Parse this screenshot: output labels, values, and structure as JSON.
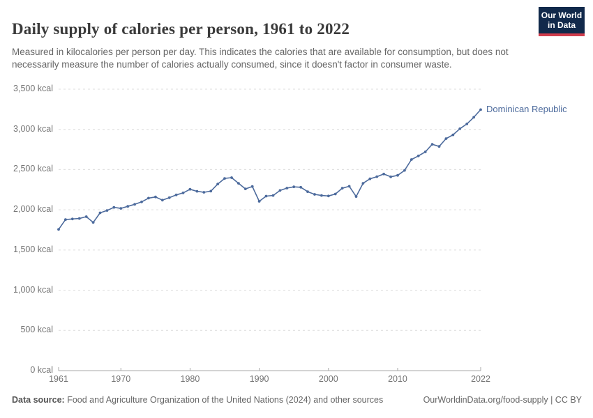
{
  "header": {
    "title": "Daily supply of calories per person, 1961 to 2022",
    "subtitle": "Measured in kilocalories per person per day. This indicates the calories that are available for consumption, but does not necessarily measure the number of calories actually consumed, since it doesn't factor in consumer waste.",
    "logo": {
      "line1": "Our World",
      "line2": "in Data",
      "bg_color": "#11294b",
      "accent_color": "#d13d4d"
    }
  },
  "chart_data": {
    "type": "line",
    "title": "Daily supply of calories per person, 1961 to 2022",
    "unit": "kcal",
    "grid": "horizontal dashed",
    "legend_position": "end-of-line label",
    "xlim": [
      1961,
      2022
    ],
    "ylim": [
      0,
      3500
    ],
    "x_ticks": [
      1961,
      1970,
      1980,
      1990,
      2000,
      2010,
      2022
    ],
    "y_ticks": [
      {
        "value": 0,
        "label": "0 kcal"
      },
      {
        "value": 500,
        "label": "500 kcal"
      },
      {
        "value": 1000,
        "label": "1,000 kcal"
      },
      {
        "value": 1500,
        "label": "1,500 kcal"
      },
      {
        "value": 2000,
        "label": "2,000 kcal"
      },
      {
        "value": 2500,
        "label": "2,500 kcal"
      },
      {
        "value": 3000,
        "label": "3,000 kcal"
      },
      {
        "value": 3500,
        "label": "3,500 kcal"
      }
    ],
    "series": [
      {
        "name": "Dominican Republic",
        "color": "#4c6a9c",
        "years": [
          1961,
          1962,
          1963,
          1964,
          1965,
          1966,
          1967,
          1968,
          1969,
          1970,
          1971,
          1972,
          1973,
          1974,
          1975,
          1976,
          1977,
          1978,
          1979,
          1980,
          1981,
          1982,
          1983,
          1984,
          1985,
          1986,
          1987,
          1988,
          1989,
          1990,
          1991,
          1992,
          1993,
          1994,
          1995,
          1996,
          1997,
          1998,
          1999,
          2000,
          2001,
          2002,
          2003,
          2004,
          2005,
          2006,
          2007,
          2008,
          2009,
          2010,
          2011,
          2012,
          2013,
          2014,
          2015,
          2016,
          2017,
          2018,
          2019,
          2020,
          2021,
          2022
        ],
        "values": [
          1756,
          1878,
          1886,
          1892,
          1915,
          1843,
          1962,
          1992,
          2030,
          2018,
          2043,
          2068,
          2098,
          2145,
          2160,
          2120,
          2150,
          2185,
          2210,
          2255,
          2230,
          2218,
          2232,
          2320,
          2390,
          2400,
          2330,
          2260,
          2290,
          2105,
          2170,
          2178,
          2240,
          2270,
          2285,
          2280,
          2226,
          2192,
          2178,
          2172,
          2196,
          2268,
          2292,
          2165,
          2330,
          2385,
          2412,
          2445,
          2410,
          2428,
          2490,
          2625,
          2670,
          2720,
          2815,
          2788,
          2885,
          2932,
          3008,
          3068,
          3150,
          3245
        ]
      }
    ],
    "end_label": "Dominican Republic"
  },
  "footer": {
    "source_label": "Data source:",
    "source_text": " Food and Agriculture Organization of the United Nations (2024) and other sources",
    "link_text": "OurWorldinData.org/food-supply | CC BY"
  }
}
